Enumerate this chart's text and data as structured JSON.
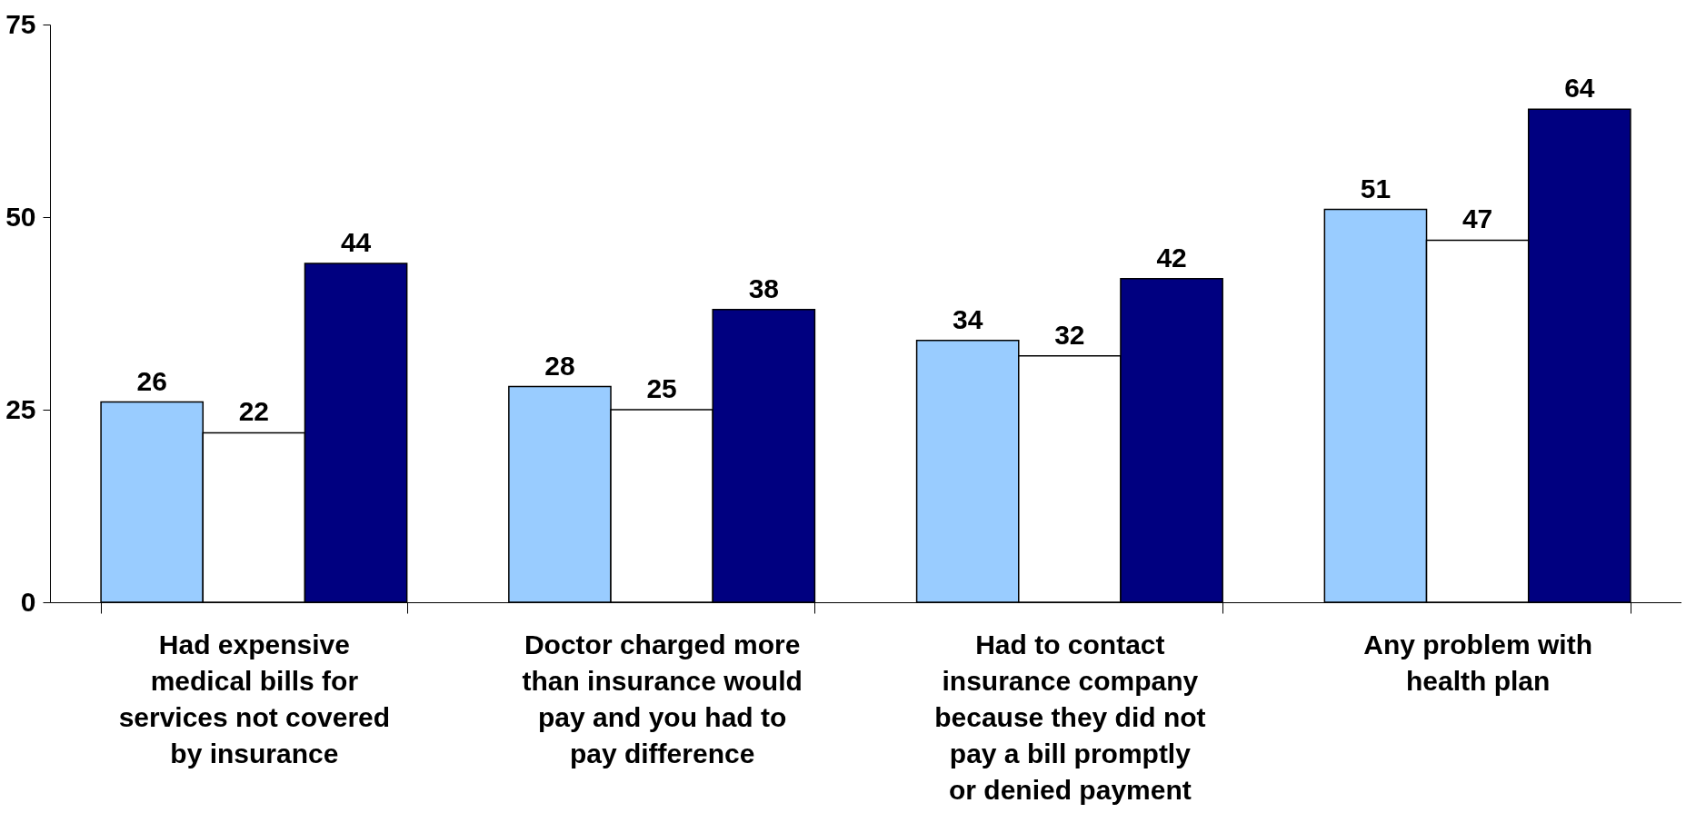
{
  "chart_data": {
    "type": "bar",
    "categories": [
      "Had expensive medical bills for services not covered by insurance",
      "Doctor charged more than insurance would pay and you had to pay difference",
      "Had to contact insurance company because they did not pay a bill promptly or denied payment",
      "Any problem with health plan"
    ],
    "series": [
      {
        "color": "#99ccff",
        "values": [
          26,
          28,
          34,
          51
        ]
      },
      {
        "color": "#ffffff",
        "values": [
          22,
          25,
          32,
          47
        ]
      },
      {
        "color": "#000080",
        "values": [
          44,
          38,
          42,
          64
        ]
      }
    ],
    "ylim": [
      0,
      75
    ],
    "yticks": [
      0,
      25,
      50,
      75
    ],
    "grid": false,
    "legend": false,
    "data_labels": true
  }
}
